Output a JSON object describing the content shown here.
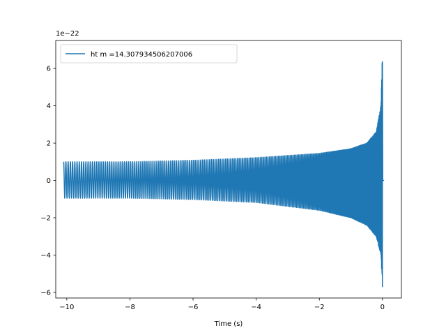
{
  "chart_data": {
    "type": "line",
    "title": "",
    "xlabel": "Time (s)",
    "ylabel": "",
    "y_offset_text": "1e−22",
    "xlim": [
      -10.35,
      0.6
    ],
    "ylim": [
      -6.3,
      7.5
    ],
    "xticks": [
      -10,
      -8,
      -6,
      -4,
      -2,
      0
    ],
    "xtick_labels": [
      "−10",
      "−8",
      "−6",
      "−4",
      "−2",
      "0"
    ],
    "yticks": [
      -6,
      -4,
      -2,
      0,
      2,
      4,
      6
    ],
    "ytick_labels": [
      "−6",
      "−4",
      "−2",
      "0",
      "2",
      "4",
      "6"
    ],
    "grid": false,
    "legend_position": "upper-left",
    "series": [
      {
        "name": "ht m =14.307934506207006",
        "color": "#1f77b4",
        "t_start": -10.1,
        "t_merger": 0.0,
        "t_end": 0.05,
        "envelope_upper": [
          {
            "t": -10.1,
            "y": 1.0
          },
          {
            "t": -8,
            "y": 1.0
          },
          {
            "t": -6,
            "y": 1.08
          },
          {
            "t": -4,
            "y": 1.22
          },
          {
            "t": -2,
            "y": 1.45
          },
          {
            "t": -1,
            "y": 1.7
          },
          {
            "t": -0.5,
            "y": 2.0
          },
          {
            "t": -0.2,
            "y": 2.6
          },
          {
            "t": -0.05,
            "y": 4.0
          },
          {
            "t": 0.0,
            "y": 7.0
          }
        ],
        "envelope_lower": [
          {
            "t": -10.1,
            "y": -0.95
          },
          {
            "t": -8,
            "y": -0.95
          },
          {
            "t": -6,
            "y": -1.02
          },
          {
            "t": -4,
            "y": -1.18
          },
          {
            "t": -2,
            "y": -1.6
          },
          {
            "t": -1,
            "y": -2.0
          },
          {
            "t": -0.5,
            "y": -2.4
          },
          {
            "t": -0.2,
            "y": -3.0
          },
          {
            "t": -0.05,
            "y": -4.0
          },
          {
            "t": 0.0,
            "y": -5.8
          }
        ]
      }
    ]
  }
}
